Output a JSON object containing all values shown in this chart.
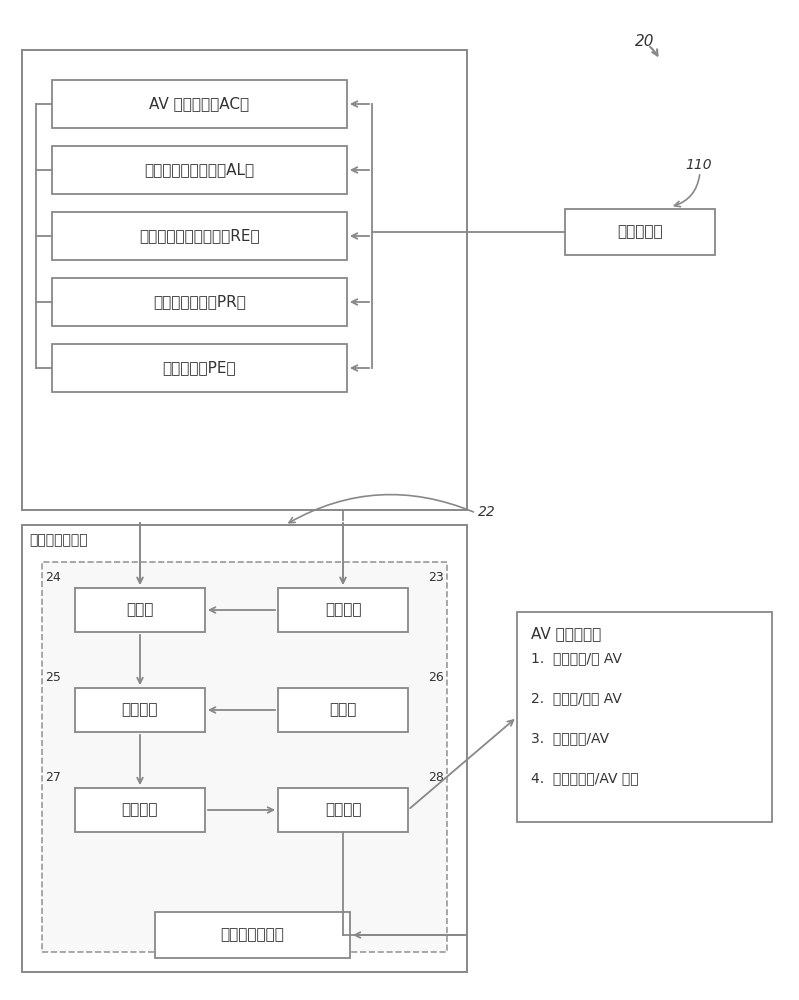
{
  "bg_color": "#ffffff",
  "label_20": "20",
  "label_110": "110",
  "label_22": "22",
  "label_23": "23",
  "label_24": "24",
  "label_25": "25",
  "label_26": "26",
  "label_27": "27",
  "label_28": "28",
  "box_factor_labels": [
    "AV 置信因子（AC）",
    "驾驶员警觉性因子（AL）",
    "驾驶员准备状态因子（RE）",
    "动作概率因子（PR）",
    "危险因子（PE）"
  ],
  "data_collector_label": "数据收集器",
  "fuzzy_processor_label": "模糊逻辑处理器",
  "fuzzifier_label": "模糊器",
  "crisp_input_label": "脆性输入",
  "inference_engine_label": "推理引擎",
  "rule_base_label": "规则库",
  "defuzzifier_label": "解模糊器",
  "crisp_output_label": "脆性输出",
  "history_storage_label": "历史数据存储器",
  "av_control_title": "AV 控制决策：",
  "av_control_items": [
    "1.  完全人工/无 AV",
    "2.  无人工/完全 AV",
    "3.  部分人工/AV",
    "4.  完全驾驶员/AV 辅助"
  ],
  "text_color": "#333333",
  "edge_color": "#888888",
  "font_size_main": 11,
  "font_size_small": 10,
  "font_size_label_num": 10
}
